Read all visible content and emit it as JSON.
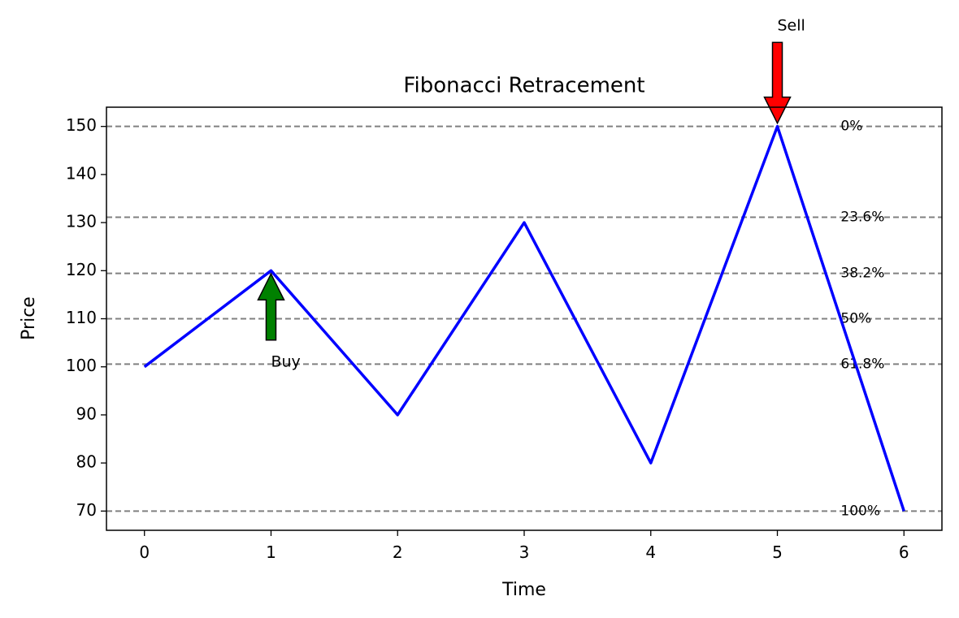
{
  "chart_data": {
    "type": "line",
    "title": "Fibonacci Retracement",
    "xlabel": "Time",
    "ylabel": "Price",
    "x": [
      0,
      1,
      2,
      3,
      4,
      5,
      6
    ],
    "series": [
      {
        "color": "#0000ff",
        "values": [
          100,
          120,
          90,
          130,
          80,
          150,
          70
        ]
      }
    ],
    "xlim": [
      -0.3,
      6.3
    ],
    "xticks": [
      0,
      1,
      2,
      3,
      4,
      5,
      6
    ],
    "ylim": [
      66,
      154
    ],
    "yticks": [
      70,
      80,
      90,
      100,
      110,
      120,
      130,
      140,
      150
    ],
    "levels": [
      {
        "value": 150,
        "label": "0%"
      },
      {
        "value": 131.12,
        "label": "23.6%"
      },
      {
        "value": 119.44,
        "label": "38.2%"
      },
      {
        "value": 110,
        "label": "50%"
      },
      {
        "value": 100.56,
        "label": "61.8%"
      },
      {
        "value": 70,
        "label": "100%"
      }
    ],
    "level_label_x": 5.5,
    "level_color": "#808080",
    "annotations": [
      {
        "text": "Buy",
        "xy": [
          1,
          120
        ],
        "xytext": [
          1,
          100
        ],
        "color": "#008000"
      },
      {
        "text": "Sell",
        "xy": [
          5,
          150
        ],
        "xytext": [
          5,
          170
        ],
        "color": "#ff0000"
      }
    ]
  }
}
